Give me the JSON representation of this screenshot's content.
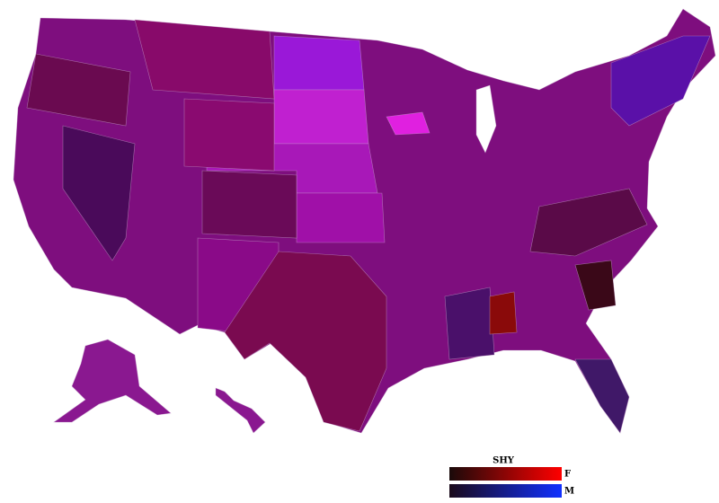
{
  "legend": {
    "title": "SHY",
    "rows": [
      {
        "label": "F",
        "from": "#1a0a0a",
        "to": "#ff0000"
      },
      {
        "label": "M",
        "from": "#1a0a1a",
        "to": "#1030ff"
      }
    ]
  }
}
